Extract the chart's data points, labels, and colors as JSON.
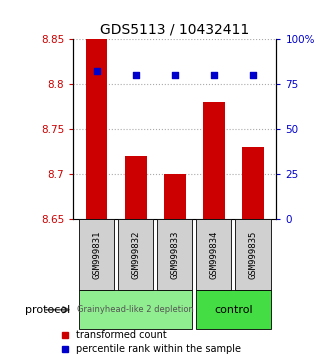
{
  "title": "GDS5113 / 10432411",
  "samples": [
    "GSM999831",
    "GSM999832",
    "GSM999833",
    "GSM999834",
    "GSM999835"
  ],
  "bar_values": [
    8.85,
    8.72,
    8.7,
    8.78,
    8.73
  ],
  "bar_bottom": 8.65,
  "percentile_values": [
    82,
    80,
    80,
    80,
    80
  ],
  "ylim_left": [
    8.65,
    8.85
  ],
  "ylim_right": [
    0,
    100
  ],
  "yticks_left": [
    8.65,
    8.7,
    8.75,
    8.8,
    8.85
  ],
  "ytick_labels_left": [
    "8.65",
    "8.7",
    "8.75",
    "8.8",
    "8.85"
  ],
  "yticks_right": [
    0,
    25,
    50,
    75,
    100
  ],
  "ytick_labels_right": [
    "0",
    "25",
    "50",
    "75",
    "100%"
  ],
  "bar_color": "#cc0000",
  "percentile_color": "#0000cc",
  "group1_samples": [
    0,
    1,
    2
  ],
  "group2_samples": [
    3,
    4
  ],
  "group1_label": "Grainyhead-like 2 depletion",
  "group2_label": "control",
  "group1_color": "#90ee90",
  "group2_color": "#44dd44",
  "group_bg_color": "#d0d0d0",
  "protocol_label": "protocol",
  "legend_bar_label": "transformed count",
  "legend_pct_label": "percentile rank within the sample",
  "background_color": "#ffffff",
  "dotted_line_color": "#aaaaaa",
  "title_fontsize": 10,
  "tick_fontsize": 7.5,
  "sample_fontsize": 6.5,
  "group_fontsize": 7
}
